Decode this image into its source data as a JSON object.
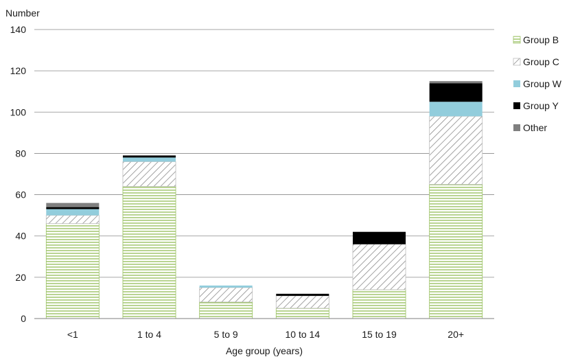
{
  "chart_data": {
    "type": "bar",
    "stacked": true,
    "ylabel": "Number",
    "xlabel": "Age group (years)",
    "ylim": [
      0,
      140
    ],
    "yticks": [
      0,
      20,
      40,
      60,
      80,
      100,
      120,
      140
    ],
    "grid": true,
    "legend_position": "right",
    "categories": [
      "<1",
      "1 to 4",
      "5 to 9",
      "10 to 14",
      "15 to 19",
      "20+"
    ],
    "series": [
      {
        "name": "Group B",
        "values": [
          46,
          64,
          8,
          5,
          14,
          65
        ],
        "color": "#9bc264",
        "pattern": "horizontal-lines"
      },
      {
        "name": "Group C",
        "values": [
          4,
          12,
          7,
          6,
          22,
          33
        ],
        "color": "#8c8c8c",
        "pattern": "diagonal-hatch"
      },
      {
        "name": "Group W",
        "values": [
          3,
          2,
          1,
          0,
          0,
          7
        ],
        "color": "#92cddc",
        "pattern": "solid"
      },
      {
        "name": "Group Y",
        "values": [
          1,
          1,
          0,
          1,
          6,
          9
        ],
        "color": "#000000",
        "pattern": "solid"
      },
      {
        "name": "Other",
        "values": [
          2,
          0,
          0,
          0,
          0,
          1
        ],
        "color": "#7f7f7f",
        "pattern": "solid"
      }
    ]
  }
}
